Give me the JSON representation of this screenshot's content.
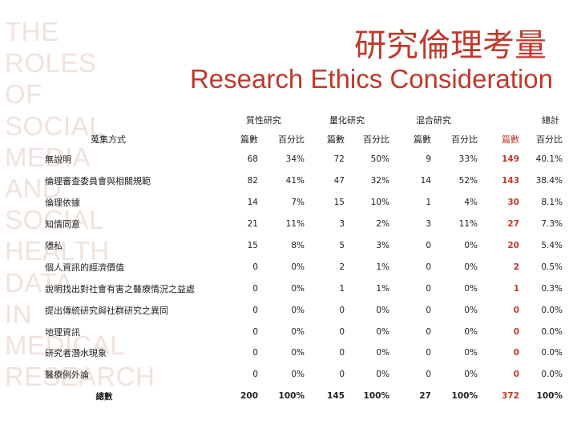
{
  "watermark_lines": [
    "THE",
    "ROLES",
    "OF",
    "SOCIAL",
    "MEDIA",
    "AND",
    "SOCIAL",
    "HEALTH",
    "DATA",
    "IN",
    "MEDICAL",
    "RESEARCH"
  ],
  "title_cn": "研究倫理考量",
  "title_en": "Research Ethics Consideration",
  "accent_color": "#c0392b",
  "table": {
    "row_header": "蒐集方式",
    "groups": [
      "質性研究",
      "量化研究",
      "混合研究",
      "總計"
    ],
    "subheaders": [
      "篇數",
      "百分比",
      "篇數",
      "百分比",
      "篇數",
      "百分比",
      "篇數",
      "百分比"
    ],
    "rows": [
      {
        "name": "無說明",
        "v": [
          "68",
          "34%",
          "72",
          "50%",
          "9",
          "33%",
          "149",
          "40.1%"
        ]
      },
      {
        "name": "倫理審查委員會與相關規範",
        "v": [
          "82",
          "41%",
          "47",
          "32%",
          "14",
          "52%",
          "143",
          "38.4%"
        ]
      },
      {
        "name": "倫理依據",
        "v": [
          "14",
          "7%",
          "15",
          "10%",
          "1",
          "4%",
          "30",
          "8.1%"
        ]
      },
      {
        "name": "知情同意",
        "v": [
          "21",
          "11%",
          "3",
          "2%",
          "3",
          "11%",
          "27",
          "7.3%"
        ]
      },
      {
        "name": "隱私",
        "v": [
          "15",
          "8%",
          "5",
          "3%",
          "0",
          "0%",
          "20",
          "5.4%"
        ]
      },
      {
        "name": "個人資訊的經濟價值",
        "v": [
          "0",
          "0%",
          "2",
          "1%",
          "0",
          "0%",
          "2",
          "0.5%"
        ]
      },
      {
        "name": "說明找出對社會有害之醫療情況之益處",
        "v": [
          "0",
          "0%",
          "1",
          "1%",
          "0",
          "0%",
          "1",
          "0.3%"
        ]
      },
      {
        "name": "提出傳統研究與社群研究之異同",
        "v": [
          "0",
          "0%",
          "0",
          "0%",
          "0",
          "0%",
          "0",
          "0.0%"
        ]
      },
      {
        "name": "地理資訊",
        "v": [
          "0",
          "0%",
          "0",
          "0%",
          "0",
          "0%",
          "0",
          "0.0%"
        ]
      },
      {
        "name": "研究者潛水現象",
        "v": [
          "0",
          "0%",
          "0",
          "0%",
          "0",
          "0%",
          "0",
          "0.0%"
        ]
      },
      {
        "name": "醫療例外論",
        "v": [
          "0",
          "0%",
          "0",
          "0%",
          "0",
          "0%",
          "0",
          "0.0%"
        ]
      }
    ],
    "total": {
      "name": "總數",
      "v": [
        "200",
        "100%",
        "145",
        "100%",
        "27",
        "100%",
        "372",
        "100%"
      ]
    }
  }
}
